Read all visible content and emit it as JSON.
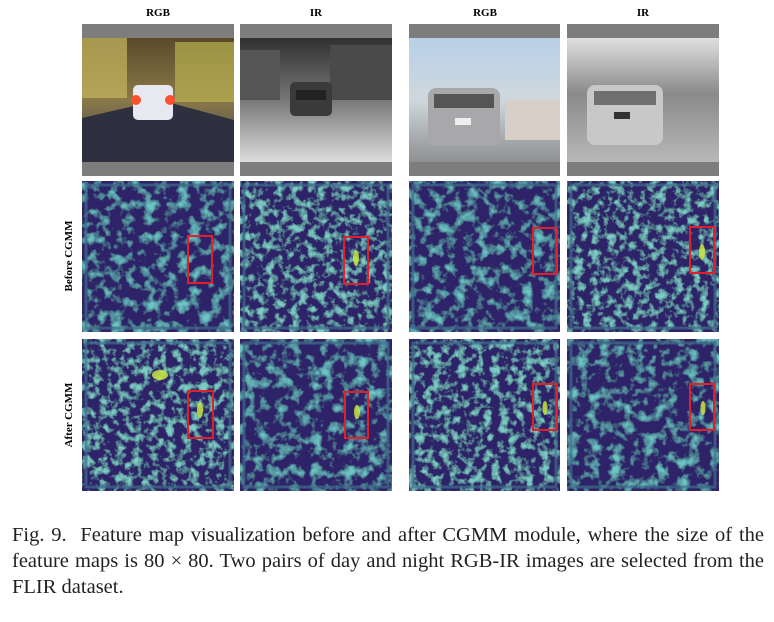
{
  "figure": {
    "column_headers": [
      "RGB",
      "IR",
      "RGB",
      "IR"
    ],
    "row_labels": [
      "Before CGMM",
      "After CGMM"
    ],
    "label": "Fig. 9.",
    "caption": "Feature map visualization before and after CGMM module, where the size of the feature maps is 80 × 80. Two pairs of day and night RGB-IR images are selected from the FLIR dataset."
  }
}
